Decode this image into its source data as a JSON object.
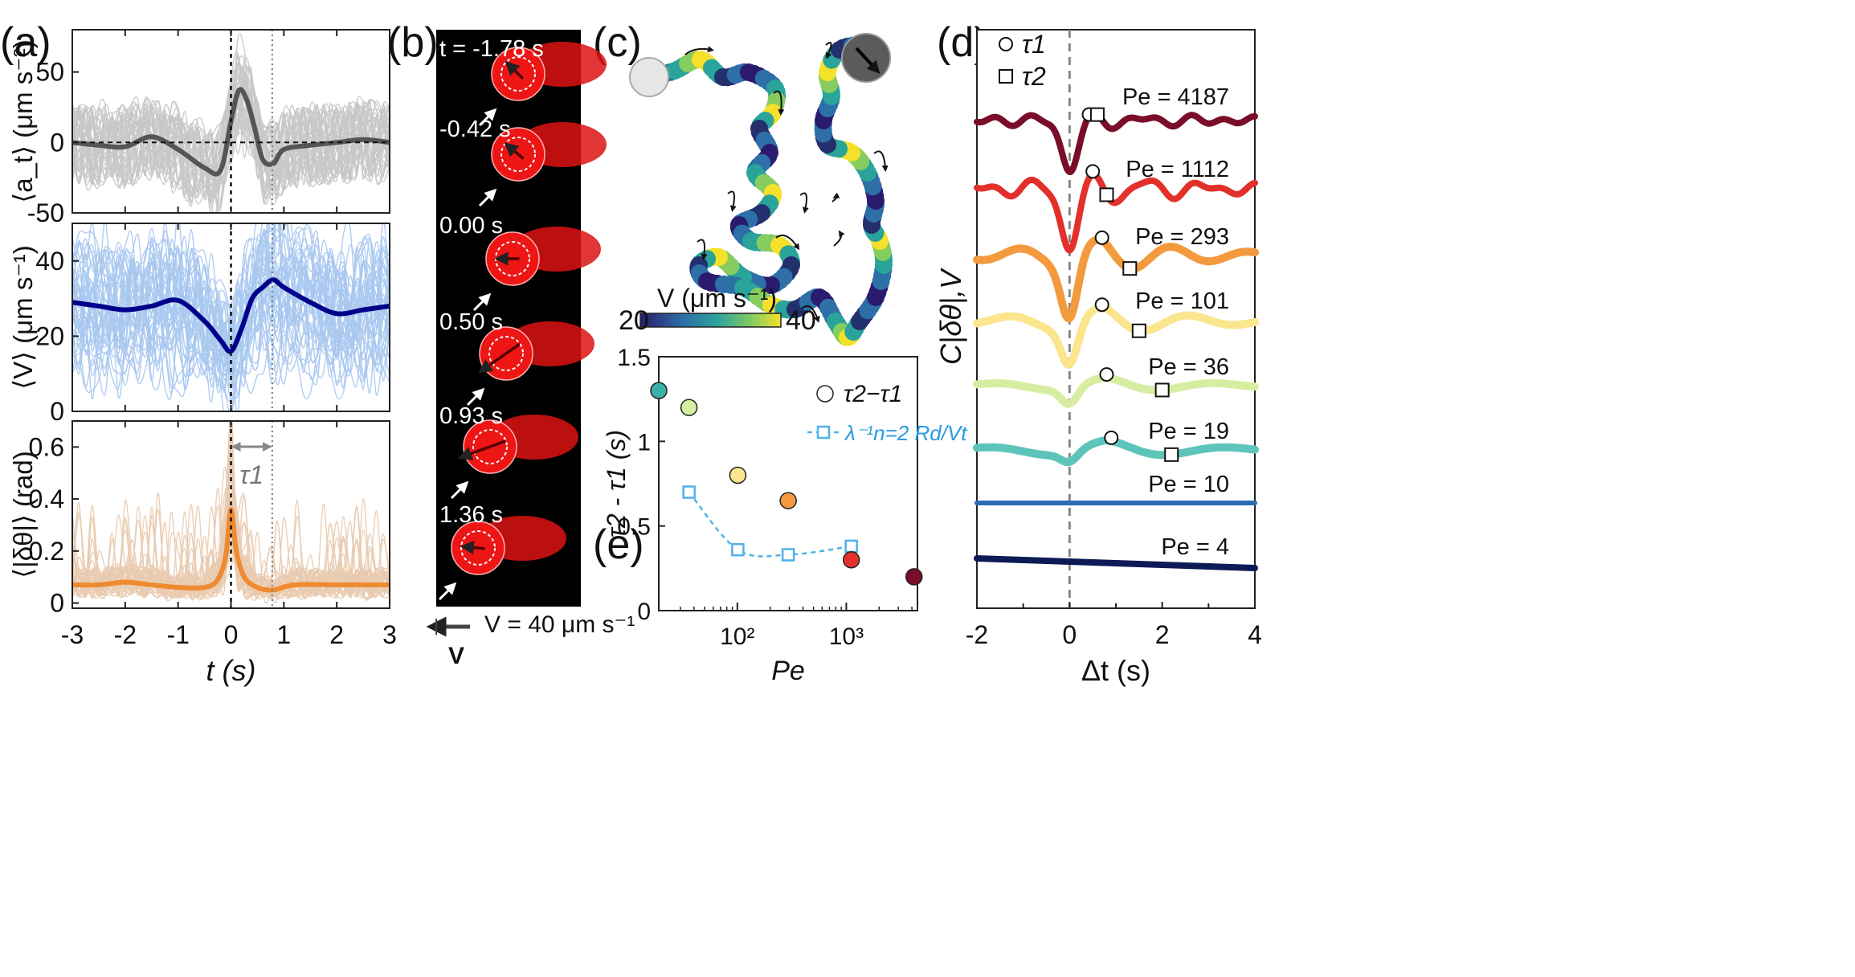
{
  "panel_labels": {
    "a": "(a)",
    "b": "(b)",
    "c": "(c)",
    "d": "(d)",
    "e": "(e)"
  },
  "chart_data": [
    {
      "id": "a1",
      "type": "line",
      "title": "",
      "ylabel": "⟨a_t⟩ (μm s^-2)",
      "ylabel_text": "⟨a_t⟩ (μm s⁻²)",
      "xlim": [
        -3,
        3
      ],
      "ylim": [
        -50,
        80
      ],
      "yticks": [
        -50,
        0,
        50
      ],
      "ytick_labels": [
        "-50",
        "0",
        "50"
      ],
      "mean_color": "#555555",
      "trace_color": "#c8c8c8",
      "x": [
        -3,
        -2.5,
        -2,
        -1.5,
        -1,
        -0.5,
        -0.2,
        0,
        0.15,
        0.3,
        0.45,
        0.6,
        0.8,
        1,
        1.5,
        2,
        2.5,
        3
      ],
      "mean": [
        0,
        -2,
        -3,
        4,
        -5,
        -18,
        -20,
        15,
        37,
        30,
        10,
        -12,
        -15,
        -5,
        -2,
        0,
        2,
        0
      ],
      "annotations": [
        "zero line dashed",
        "vertical dashed at t=0",
        "vertical dotted at t=0.78"
      ]
    },
    {
      "id": "a2",
      "type": "line",
      "title": "",
      "ylabel_text": "⟨V⟩ (μm s⁻¹)",
      "xlim": [
        -3,
        3
      ],
      "ylim": [
        0,
        50
      ],
      "yticks": [
        0,
        20,
        40
      ],
      "ytick_labels": [
        "0",
        "20",
        "40"
      ],
      "mean_color": "#00008b",
      "trace_color": "#a9c8f0",
      "x": [
        -3,
        -2.5,
        -2,
        -1.5,
        -1,
        -0.5,
        -0.2,
        0,
        0.2,
        0.4,
        0.6,
        0.8,
        1,
        1.5,
        2,
        2.5,
        3
      ],
      "mean": [
        29,
        28,
        27,
        28,
        29.5,
        24,
        19,
        16,
        22,
        30,
        33,
        35,
        33,
        29,
        26,
        27,
        28
      ]
    },
    {
      "id": "a3",
      "type": "line",
      "title": "",
      "ylabel_text": "⟨|δθ|⟩ (rad)",
      "xlabel_text": "t (s)",
      "xlim": [
        -3,
        3
      ],
      "ylim": [
        -0.02,
        0.7
      ],
      "yticks": [
        0,
        0.2,
        0.4,
        0.6
      ],
      "ytick_labels": [
        "0",
        "0.2",
        "0.4",
        "0.6"
      ],
      "xticks": [
        -3,
        -2,
        -1,
        0,
        1,
        2,
        3
      ],
      "xtick_labels": [
        "-3",
        "-2",
        "-1",
        "0",
        "1",
        "2",
        "3"
      ],
      "mean_color": "#ee8a2f",
      "trace_color": "#e9cbb0",
      "x": [
        -3,
        -2.5,
        -2,
        -1.5,
        -1,
        -0.5,
        -0.25,
        -0.1,
        0,
        0.1,
        0.25,
        0.5,
        0.8,
        1.2,
        2,
        2.5,
        3
      ],
      "mean": [
        0.07,
        0.07,
        0.08,
        0.07,
        0.06,
        0.06,
        0.09,
        0.18,
        0.36,
        0.2,
        0.1,
        0.06,
        0.05,
        0.07,
        0.07,
        0.07,
        0.07
      ],
      "tau_label": "τ1"
    },
    {
      "id": "d",
      "type": "line",
      "title": "",
      "ylabel_text": "C|δθ|,V",
      "xlabel_text": "Δt (s)",
      "xlim": [
        -2,
        4
      ],
      "xticks": [
        -2,
        0,
        2,
        4
      ],
      "xtick_labels": [
        "-2",
        "0",
        "2",
        "4"
      ],
      "legend": [
        {
          "marker": "circle",
          "label": "τ1"
        },
        {
          "marker": "square",
          "label": "τ2"
        }
      ],
      "series": [
        {
          "name": "Pe = 4187",
          "color": "#7a0d2a",
          "tau1": 0.42,
          "tau2": 0.6
        },
        {
          "name": "Pe = 1112",
          "color": "#e3302a",
          "tau1": 0.5,
          "tau2": 0.8
        },
        {
          "name": "Pe = 293",
          "color": "#f39a3e",
          "tau1": 0.7,
          "tau2": 1.3
        },
        {
          "name": "Pe = 101",
          "color": "#fbe58d",
          "tau1": 0.7,
          "tau2": 1.5
        },
        {
          "name": "Pe = 36",
          "color": "#d7eda2",
          "tau1": 0.8,
          "tau2": 2.0
        },
        {
          "name": "Pe = 19",
          "color": "#5ec4bb",
          "tau1": 0.9,
          "tau2": 2.2
        },
        {
          "name": "Pe = 10",
          "color": "#2a6db5",
          "tau1": null,
          "tau2": null
        },
        {
          "name": "Pe = 4",
          "color": "#0d1a55",
          "tau1": null,
          "tau2": null
        }
      ]
    },
    {
      "id": "e",
      "type": "scatter",
      "title": "",
      "ylabel_text": "τ2 - τ1 (s)",
      "xlabel_text": "Pe",
      "xscale": "log",
      "xlim": [
        19,
        4500
      ],
      "ylim": [
        0,
        1.5
      ],
      "yticks": [
        0,
        0.5,
        1,
        1.5
      ],
      "ytick_labels": [
        "0",
        "0.5",
        "1",
        "1.5"
      ],
      "xticks": [
        100,
        1000
      ],
      "xtick_labels": [
        "10²",
        "10³"
      ],
      "legend": [
        {
          "label": "τ2−τ1"
        },
        {
          "label": "λ⁻¹n=2 Rd/Vt"
        }
      ],
      "circles": [
        {
          "pe": 19,
          "value": 1.3,
          "color": "#3bb0a9"
        },
        {
          "pe": 36,
          "value": 1.2,
          "color": "#d7eda2"
        },
        {
          "pe": 101,
          "value": 0.8,
          "color": "#fbe58d"
        },
        {
          "pe": 293,
          "value": 0.65,
          "color": "#f39a3e"
        },
        {
          "pe": 1112,
          "value": 0.3,
          "color": "#e3302a"
        },
        {
          "pe": 4187,
          "value": 0.2,
          "color": "#7a0d2a"
        }
      ],
      "squares": [
        {
          "pe": 36,
          "value": 0.7
        },
        {
          "pe": 101,
          "value": 0.36
        },
        {
          "pe": 293,
          "value": 0.33
        },
        {
          "pe": 1112,
          "value": 0.38
        }
      ],
      "square_color": "#4fb1e8"
    }
  ],
  "panel_b": {
    "frames": [
      "t = -1.78 s",
      "-0.42 s",
      "0.00 s",
      "0.50 s",
      "0.93 s",
      "1.36 s"
    ],
    "scale_label": "V = 40 μm s⁻¹",
    "arrow_label": "V"
  },
  "panel_c": {
    "colorbar_label": "V (μm s⁻¹)",
    "colorbar_min": "20",
    "colorbar_max": "40",
    "colorbar_colors": [
      "#2a1b6e",
      "#2d6fa6",
      "#2aa39a",
      "#87cc5f",
      "#f5e12a"
    ]
  },
  "legend_a_tau": "τ1"
}
